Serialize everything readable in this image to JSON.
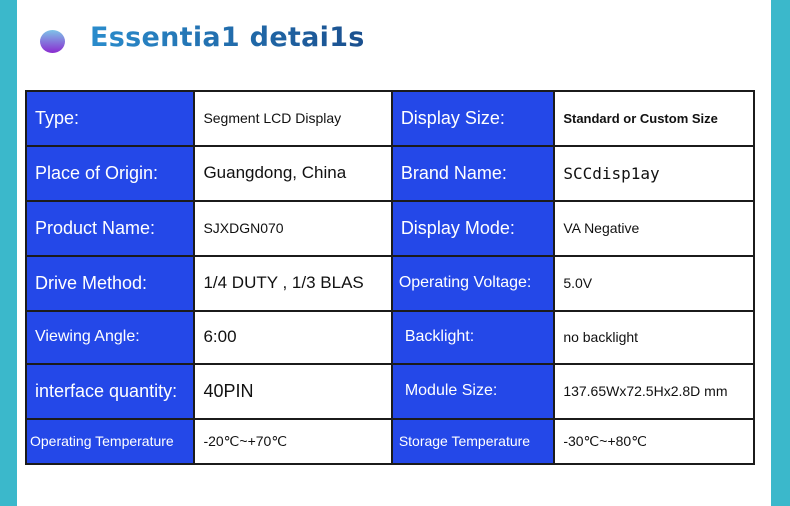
{
  "header": {
    "title": "Essentia1 detai1s",
    "bullet_icon": "gradient-circle-icon"
  },
  "colors": {
    "label_bg": "#2448e8",
    "side_bar": "#3bb8cb",
    "title": "#1a72b8"
  },
  "rows": [
    {
      "k1": "Type:",
      "v1": "Segment LCD Display",
      "k2": "Display Size:",
      "v2": "Standard or Custom Size"
    },
    {
      "k1": "Place of  Origin:",
      "v1": "Guangdong, China",
      "k2": "Brand Name:",
      "v2": "SCCdisp1ay"
    },
    {
      "k1": "Product Name:",
      "v1": "SJXDGN070",
      "k2": "Display Mode:",
      "v2": "VA Negative"
    },
    {
      "k1": "Drive Method:",
      "v1": "1/4 DUTY , 1/3 BLAS",
      "k2": "Operating Voltage:",
      "v2": "5.0V"
    },
    {
      "k1": "Viewing Angle:",
      "v1": "6:00",
      "k2": "Backlight:",
      "v2": "no backlight"
    },
    {
      "k1": "interface quantity:",
      "v1": "40PIN",
      "k2": "Module Size:",
      "v2": "137.65Wx72.5Hx2.8D mm"
    },
    {
      "k1": "Operating Temperature",
      "v1": "-20℃~+70℃",
      "k2": "Storage  Temperature",
      "v2": "-30℃~+80℃"
    }
  ]
}
